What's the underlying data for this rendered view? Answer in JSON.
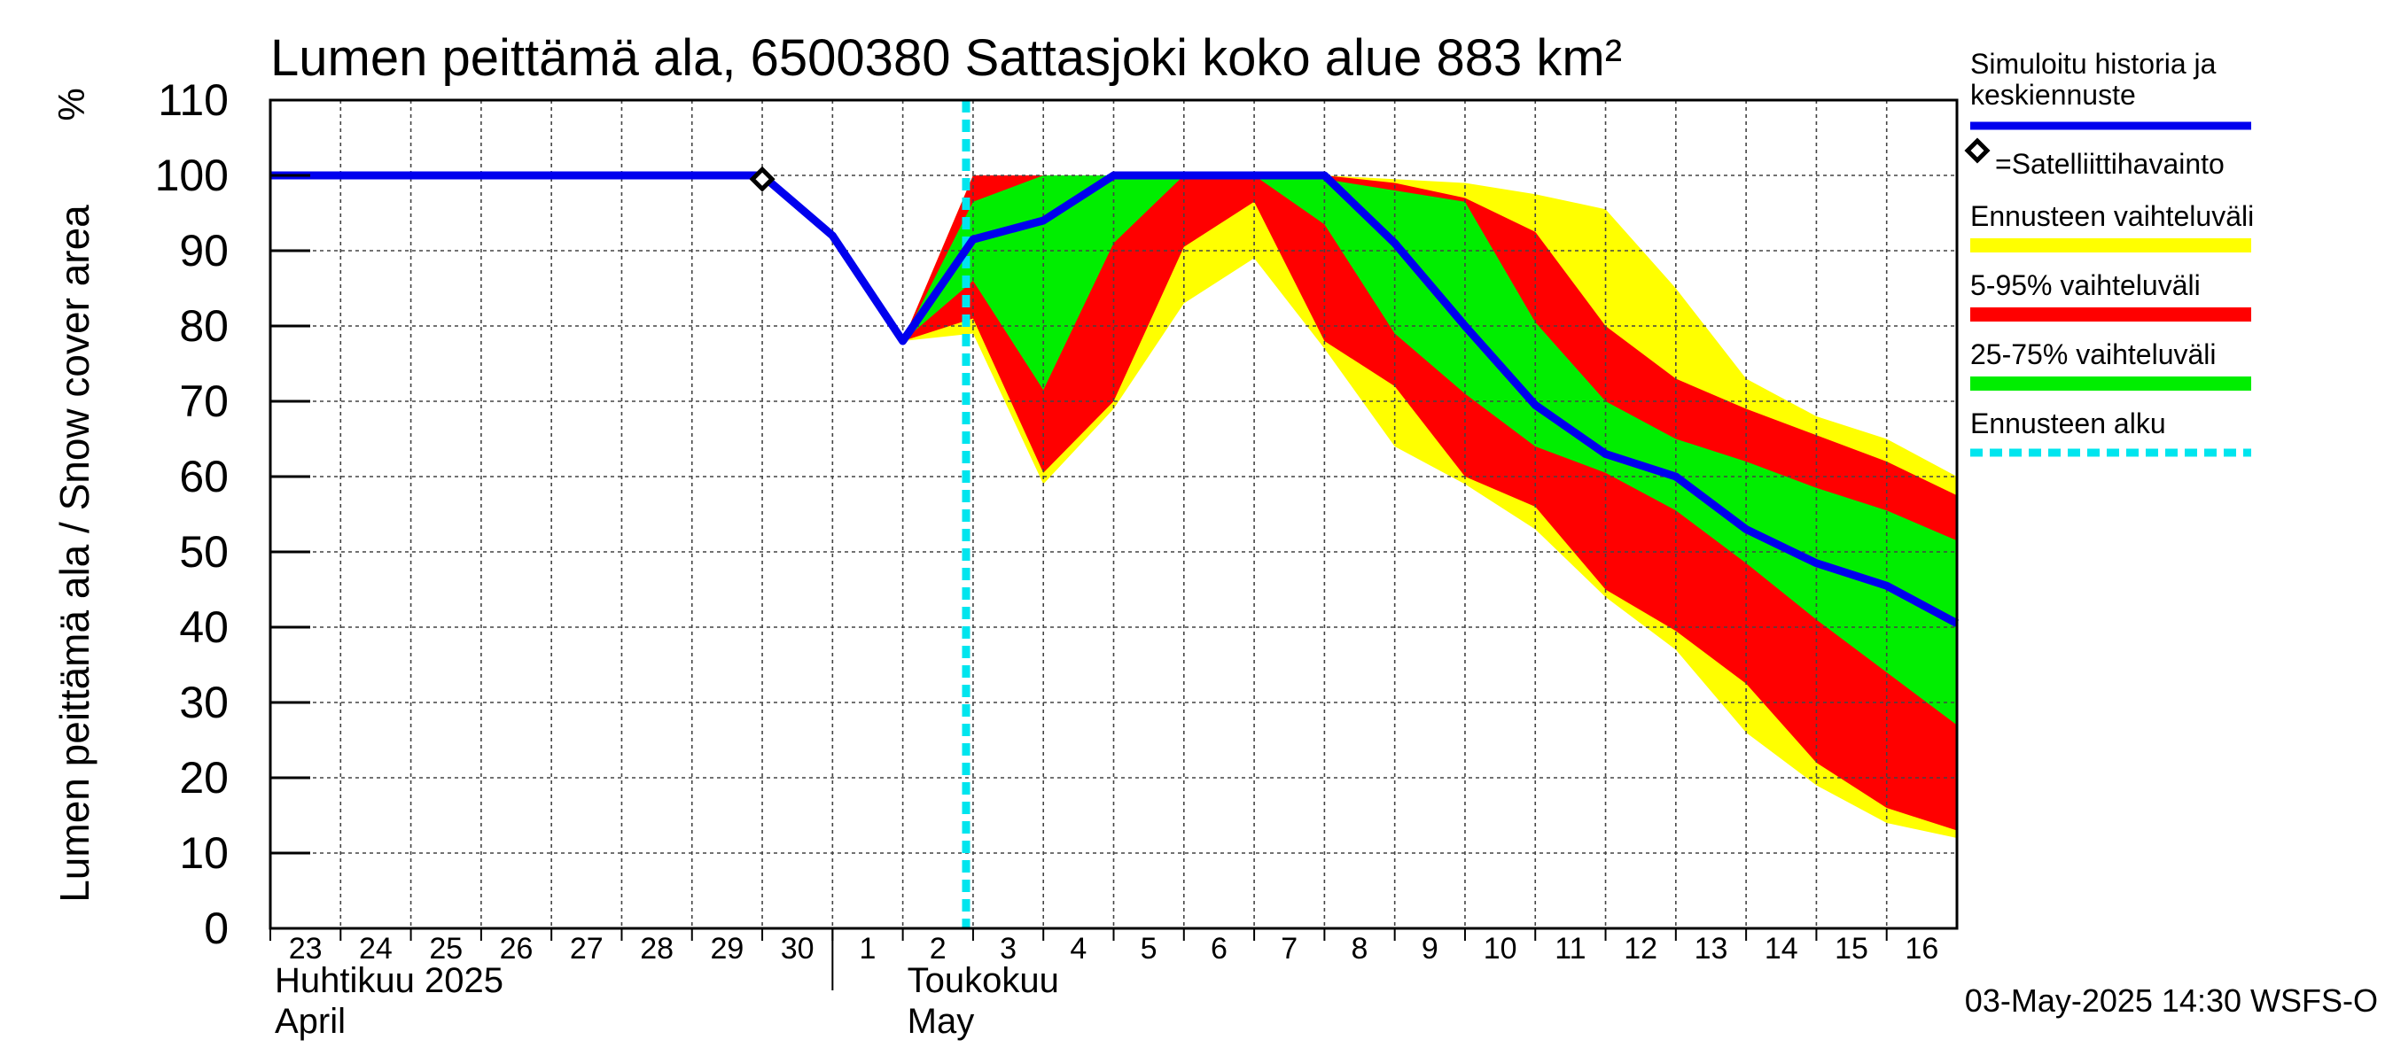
{
  "chart_data": {
    "type": "area",
    "title": "Lumen peittämä ala, 6500380 Sattasjoki koko alue 883 km²",
    "ylabel": "Lumen peittämä ala / Snow cover area",
    "yunit": "%",
    "ylim": [
      0,
      110
    ],
    "yticks": [
      0,
      10,
      20,
      30,
      40,
      50,
      60,
      70,
      80,
      90,
      100,
      110
    ],
    "xlim": [
      -10,
      14
    ],
    "x_tick_labels": [
      {
        "x": -10,
        "label": "23"
      },
      {
        "x": -9,
        "label": "24"
      },
      {
        "x": -8,
        "label": "25"
      },
      {
        "x": -7,
        "label": "26"
      },
      {
        "x": -6,
        "label": "27"
      },
      {
        "x": -5,
        "label": "28"
      },
      {
        "x": -4,
        "label": "29"
      },
      {
        "x": -3,
        "label": "30"
      },
      {
        "x": -2,
        "label": "1"
      },
      {
        "x": -1,
        "label": "2"
      },
      {
        "x": 0,
        "label": "3"
      },
      {
        "x": 1,
        "label": "4"
      },
      {
        "x": 2,
        "label": "5"
      },
      {
        "x": 3,
        "label": "6"
      },
      {
        "x": 4,
        "label": "7"
      },
      {
        "x": 5,
        "label": "8"
      },
      {
        "x": 6,
        "label": "9"
      },
      {
        "x": 7,
        "label": "10"
      },
      {
        "x": 8,
        "label": "11"
      },
      {
        "x": 9,
        "label": "12"
      },
      {
        "x": 10,
        "label": "13"
      },
      {
        "x": 11,
        "label": "14"
      },
      {
        "x": 12,
        "label": "15"
      },
      {
        "x": 13,
        "label": "16"
      }
    ],
    "month_labels": [
      {
        "x": -10,
        "fi": "Huhtikuu  2025",
        "en": "April"
      },
      {
        "x": -1,
        "fi": "Toukokuu",
        "en": "May"
      }
    ],
    "month_divider_x": -2,
    "forecast_start_x": -0.1,
    "series": [
      {
        "name": "Ennusteen vaihteluväli",
        "color": "#ffff00",
        "x": [
          -1,
          0,
          1,
          2,
          3,
          4,
          5,
          6,
          7,
          8,
          9,
          10,
          11,
          12,
          13,
          14
        ],
        "upper": [
          78,
          100,
          100,
          100,
          100,
          100,
          100,
          99.5,
          99,
          97.5,
          95.5,
          85,
          73,
          68,
          65,
          60
        ],
        "lower": [
          78,
          79,
          59,
          69,
          83,
          89,
          77,
          64,
          59,
          53,
          44,
          37,
          26,
          19,
          14,
          12
        ]
      },
      {
        "name": "5-95% vaihteluväli",
        "color": "#ff0000",
        "x": [
          -1,
          0,
          1,
          2,
          3,
          4,
          5,
          6,
          7,
          8,
          9,
          10,
          11,
          12,
          13,
          14
        ],
        "upper": [
          78,
          100,
          100,
          100,
          100,
          100,
          100,
          99,
          97,
          92.5,
          80,
          73,
          69,
          65.5,
          62,
          57.5
        ],
        "lower": [
          78,
          81,
          60.5,
          70,
          90.5,
          96.5,
          78,
          72,
          60,
          56,
          45,
          39.5,
          32.5,
          22,
          16,
          13
        ]
      },
      {
        "name": "25-75% vaihteluväli",
        "color": "#00ee00",
        "x": [
          -1,
          0,
          1,
          2,
          3,
          4,
          5,
          6,
          7,
          8,
          9,
          10,
          11,
          12,
          13,
          14
        ],
        "upper": [
          78,
          96.5,
          100,
          100,
          100,
          100,
          99.5,
          98,
          96.5,
          80.5,
          70,
          65,
          62,
          58.5,
          55.5,
          51.5
        ],
        "lower": [
          78,
          86,
          71.5,
          91,
          100,
          100,
          93.5,
          79,
          71,
          64,
          60.5,
          55.5,
          48.5,
          41,
          34,
          27
        ]
      },
      {
        "name": "Simuloitu historia ja keskiennuste",
        "color": "#0000ee",
        "x": [
          -10,
          -9,
          -8,
          -7,
          -6,
          -5,
          -4,
          -3,
          -2,
          -1,
          0,
          1,
          2,
          3,
          4,
          5,
          6,
          7,
          8,
          9,
          10,
          11,
          12,
          13,
          14
        ],
        "y": [
          100,
          100,
          100,
          100,
          100,
          100,
          100,
          100,
          92,
          78,
          91.5,
          94,
          100,
          100,
          100,
          100,
          91,
          80,
          69.5,
          63,
          60,
          53,
          48.5,
          45.5,
          40.5
        ]
      }
    ],
    "satellite_observations": [
      {
        "x": -3,
        "y": 99.5
      }
    ],
    "legend": [
      {
        "kind": "line",
        "label_lines": [
          "Simuloitu historia ja",
          "keskiennuste"
        ],
        "color": "#0000ee"
      },
      {
        "kind": "diamond",
        "label_lines": [
          "=Satelliittihavainto"
        ],
        "color": "#000000"
      },
      {
        "kind": "bar",
        "label_lines": [
          "Ennusteen vaihteluväli"
        ],
        "color": "#ffff00"
      },
      {
        "kind": "bar",
        "label_lines": [
          "5-95% vaihteluväli"
        ],
        "color": "#ff0000"
      },
      {
        "kind": "bar",
        "label_lines": [
          "25-75% vaihteluväli"
        ],
        "color": "#00ee00"
      },
      {
        "kind": "dashed",
        "label_lines": [
          "Ennusteen alku"
        ],
        "color": "#00e5ee"
      }
    ],
    "legend_position": "right",
    "grid": true,
    "footer": "03-May-2025 14:30 WSFS-O"
  }
}
